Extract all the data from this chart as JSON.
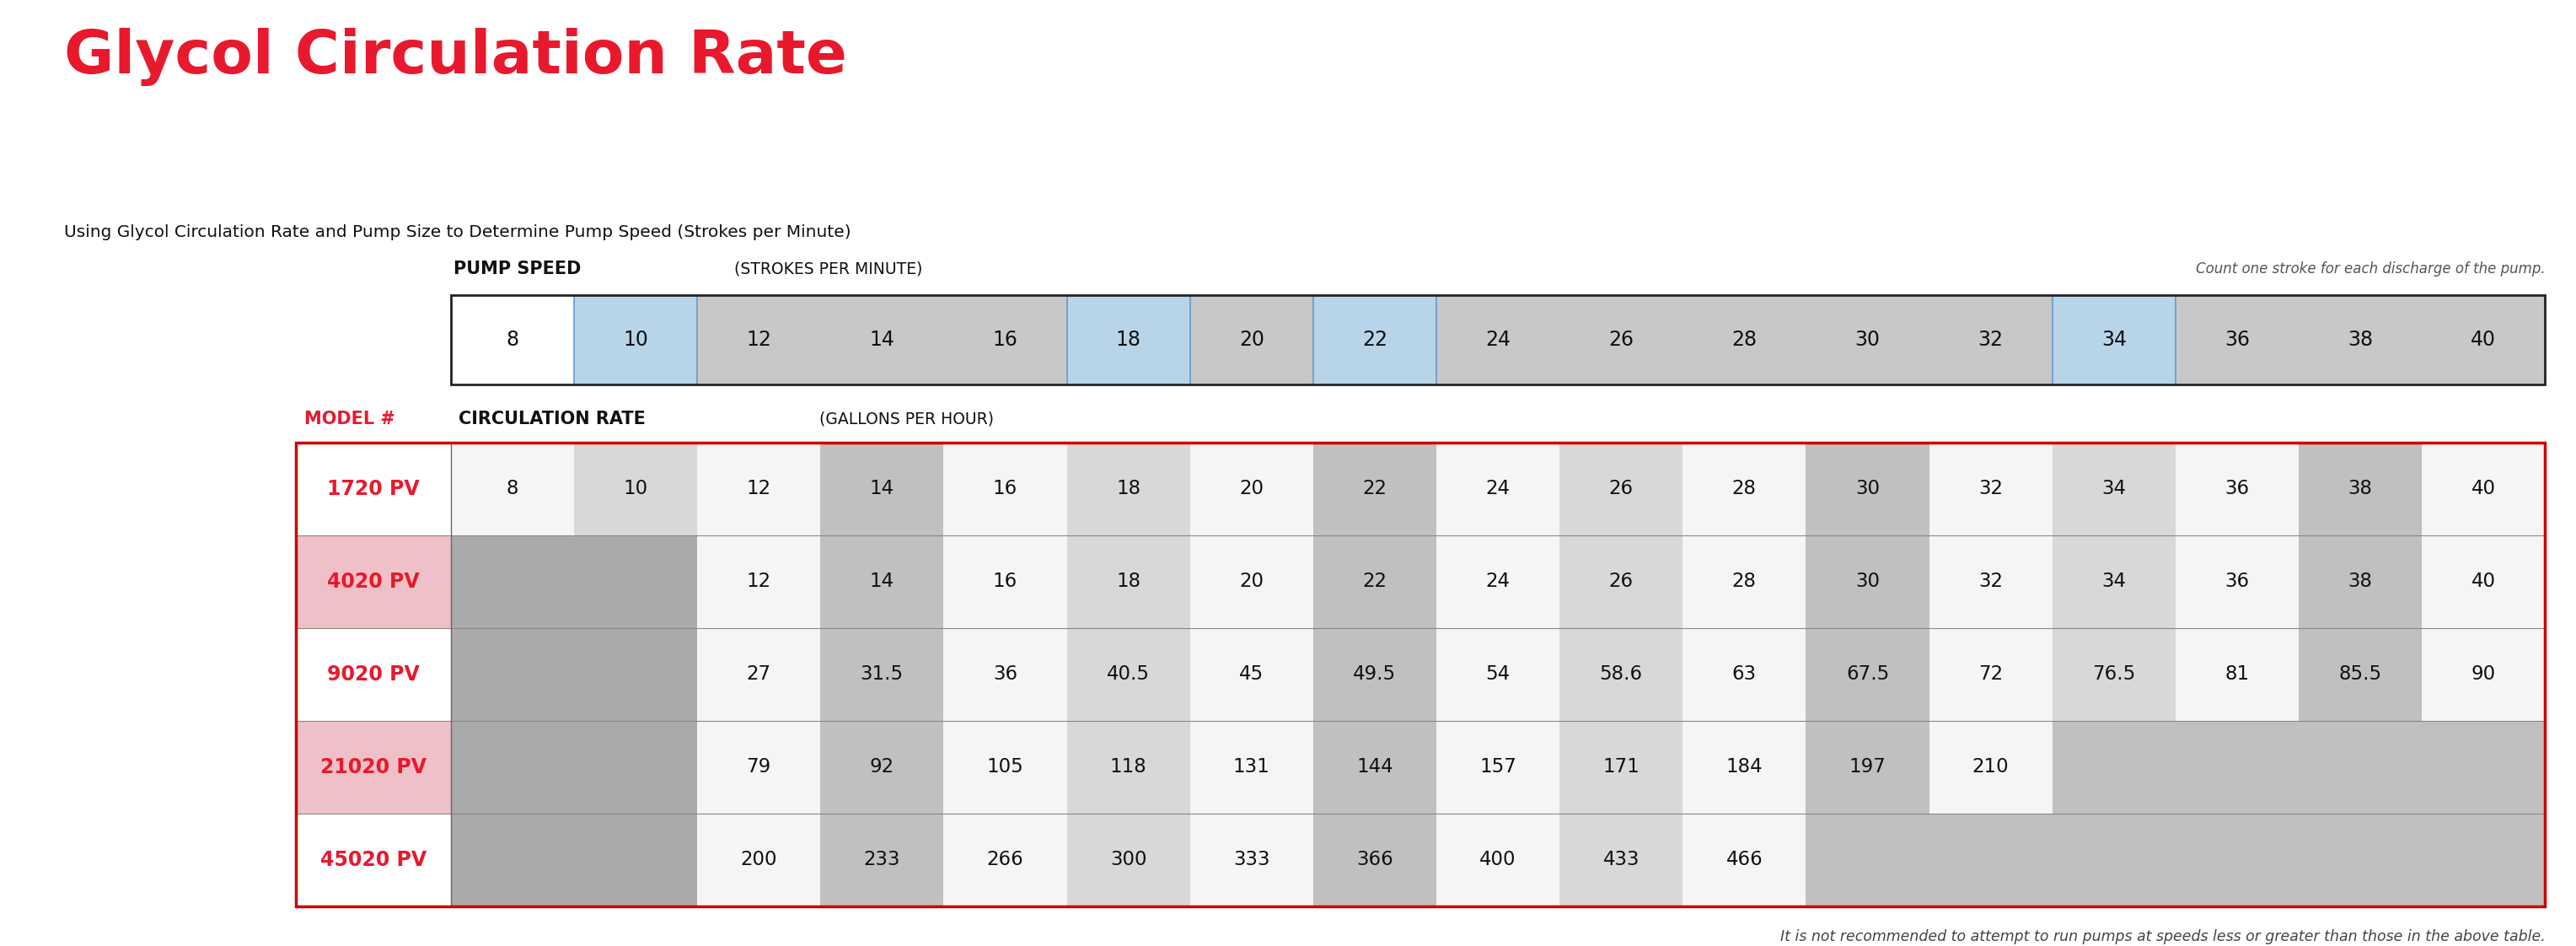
{
  "title": "Glycol Circulation Rate",
  "subtitle": "Using Glycol Circulation Rate and Pump Size to Determine Pump Speed (Strokes per Minute)",
  "pump_speed_label_bold": "PUMP SPEED",
  "pump_speed_label_normal": " (STROKES PER MINUTE)",
  "right_note": "Count one stroke for each discharge of the pump.",
  "model_label_bold": "MODEL #",
  "circ_rate_label_bold": "CIRCULATION RATE",
  "circ_rate_label_normal": " (GALLONS PER HOUR)",
  "footer_note": "It is not recommended to attempt to run pumps at speeds less or greater than those in the above table.",
  "pump_speeds": [
    "8",
    "10",
    "12",
    "14",
    "16",
    "18",
    "20",
    "22",
    "24",
    "26",
    "28",
    "30",
    "32",
    "34",
    "36",
    "38",
    "40"
  ],
  "models": [
    "1720 PV",
    "4020 PV",
    "9020 PV",
    "21020 PV",
    "45020 PV"
  ],
  "table_data": [
    [
      "8",
      "10",
      "12",
      "14",
      "16",
      "18",
      "20",
      "22",
      "24",
      "26",
      "28",
      "30",
      "32",
      "34",
      "36",
      "38",
      "40"
    ],
    [
      "",
      "",
      "12",
      "14",
      "16",
      "18",
      "20",
      "22",
      "24",
      "26",
      "28",
      "30",
      "32",
      "34",
      "36",
      "38",
      "40"
    ],
    [
      "",
      "",
      "27",
      "31.5",
      "36",
      "40.5",
      "45",
      "49.5",
      "54",
      "58.6",
      "63",
      "67.5",
      "72",
      "76.5",
      "81",
      "85.5",
      "90"
    ],
    [
      "",
      "",
      "79",
      "92",
      "105",
      "118",
      "131",
      "144",
      "157",
      "171",
      "184",
      "197",
      "210",
      "",
      "",
      "",
      ""
    ],
    [
      "",
      "",
      "200",
      "233",
      "266",
      "300",
      "333",
      "366",
      "400",
      "433",
      "466",
      "",
      "",
      "",
      "",
      "",
      ""
    ]
  ],
  "pump_col_bg": [
    "#ffffff",
    "#b8d4e8",
    "#c8c8c8",
    "#c8c8c8",
    "#c8c8c8",
    "#b8d4e8",
    "#c8c8c8",
    "#b8d4e8",
    "#c8c8c8",
    "#c8c8c8",
    "#c8c8c8",
    "#c8c8c8",
    "#c8c8c8",
    "#b8d4e8",
    "#c8c8c8",
    "#c8c8c8",
    "#c8c8c8"
  ],
  "model_row_bg": [
    "#ffffff",
    "#f0c0c8",
    "#ffffff",
    "#f0c0c8",
    "#ffffff"
  ],
  "data_col_bg_light": "#f0f0f0",
  "data_col_bg_mid": "#d8d8d8",
  "data_col_bg_dark": "#b8b8b8",
  "data_col_bg_darker": "#a0a0a0",
  "bg_color": "#ffffff",
  "title_color": "#e8192c",
  "border_color": "#cc0000",
  "text_dark": "#111111",
  "model_text_color": "#e8192c"
}
